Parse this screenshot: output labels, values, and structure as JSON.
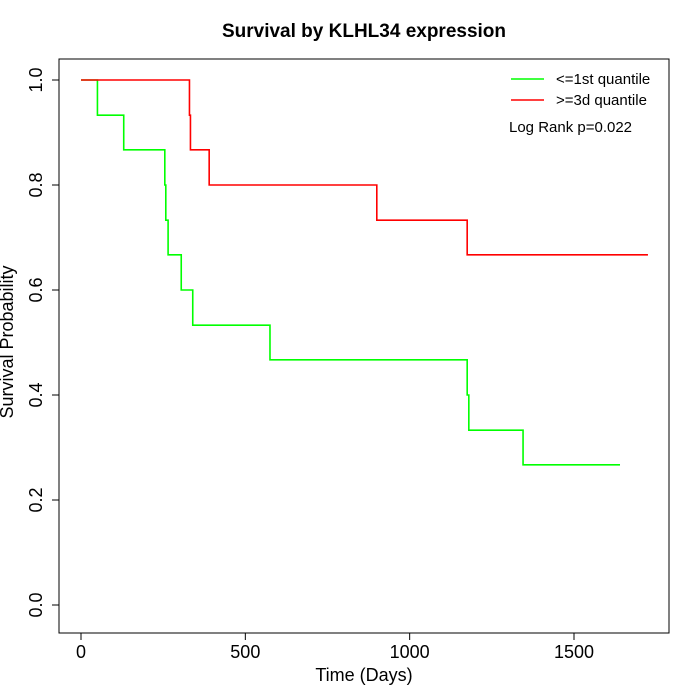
{
  "chart_data": {
    "type": "line",
    "title": "Survival by KLHL34 expression",
    "xlabel": "Time (Days)",
    "ylabel": "Survival Probability",
    "xlim": [
      0,
      1750
    ],
    "ylim": [
      0,
      1.0
    ],
    "x_ticks": [
      0,
      500,
      1000,
      1500
    ],
    "x_tick_labels": [
      "0",
      "500",
      "1000",
      "1500"
    ],
    "y_ticks": [
      0,
      0.2,
      0.4,
      0.6,
      0.8,
      1.0
    ],
    "y_tick_labels": [
      "0.0",
      "0.2",
      "0.4",
      "0.6",
      "0.8",
      "1.0"
    ],
    "grid": false,
    "legend_position": "top-right",
    "annotation": "Log Rank p=0.022",
    "series": [
      {
        "name": "<=1st quantile",
        "color": "#00ff00",
        "step": "post",
        "x": [
          0,
          50,
          130,
          255,
          258,
          265,
          305,
          340,
          575,
          1175,
          1180,
          1345,
          1640
        ],
        "y": [
          1.0,
          0.933,
          0.867,
          0.8,
          0.733,
          0.667,
          0.6,
          0.533,
          0.467,
          0.4,
          0.333,
          0.267,
          0.267
        ]
      },
      {
        "name": ">=3d quantile",
        "color": "#ff0000",
        "step": "post",
        "x": [
          0,
          330,
          333,
          390,
          900,
          1175,
          1725
        ],
        "y": [
          1.0,
          0.933,
          0.867,
          0.8,
          0.733,
          0.667,
          0.667
        ]
      }
    ]
  }
}
